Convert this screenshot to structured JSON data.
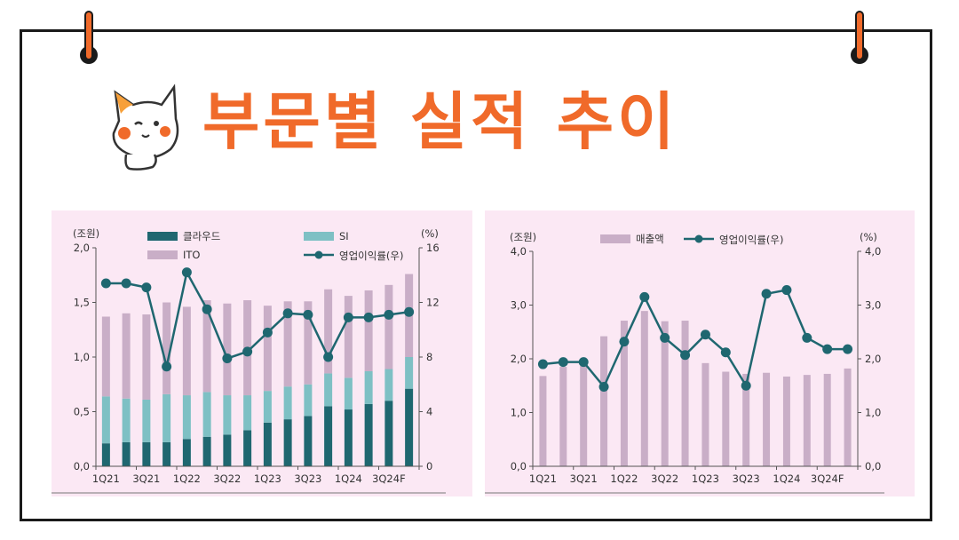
{
  "page": {
    "title": "부문별 실적 추이"
  },
  "colors": {
    "title": "#f06a2a",
    "cloud": "#1f6770",
    "si": "#7ec0c4",
    "ito": "#c9aec7",
    "sales": "#c9aec7",
    "line": "#1f6770",
    "panel_bg": "#fbe8f4"
  },
  "chart_data": [
    {
      "type": "bar",
      "stacked": true,
      "left_unit": "(조원)",
      "right_unit": "(%)",
      "ylim": [
        0,
        2.0
      ],
      "y2lim": [
        0,
        16
      ],
      "yticks": [
        "0,0",
        "0,5",
        "1,0",
        "1,5",
        "2,0"
      ],
      "y2ticks": [
        "0",
        "4",
        "8",
        "12",
        "16"
      ],
      "x_tick_labels": [
        "1Q21",
        "3Q21",
        "1Q22",
        "3Q22",
        "1Q23",
        "3Q23",
        "1Q24",
        "3Q24F"
      ],
      "categories": [
        "1Q21",
        "2Q21",
        "3Q21",
        "4Q21",
        "1Q22",
        "2Q22",
        "3Q22",
        "4Q22",
        "1Q23",
        "2Q23",
        "3Q23",
        "4Q23",
        "1Q24",
        "2Q24",
        "3Q24F",
        "4Q24F"
      ],
      "legend": [
        "클라우드",
        "SI",
        "ITO",
        "영업이익률(우)"
      ],
      "series": [
        {
          "name": "클라우드",
          "values": [
            0.21,
            0.22,
            0.22,
            0.22,
            0.25,
            0.27,
            0.29,
            0.33,
            0.4,
            0.43,
            0.46,
            0.55,
            0.52,
            0.57,
            0.6,
            0.71
          ]
        },
        {
          "name": "SI",
          "values": [
            0.43,
            0.4,
            0.39,
            0.44,
            0.4,
            0.41,
            0.36,
            0.32,
            0.29,
            0.3,
            0.29,
            0.3,
            0.29,
            0.3,
            0.29,
            0.29
          ]
        },
        {
          "name": "ITO",
          "values": [
            0.73,
            0.78,
            0.78,
            0.84,
            0.81,
            0.84,
            0.84,
            0.87,
            0.78,
            0.78,
            0.76,
            0.77,
            0.75,
            0.74,
            0.77,
            0.76
          ]
        },
        {
          "name": "영업이익률(우)",
          "axis": "right",
          "values": [
            13.4,
            13.4,
            13.1,
            7.3,
            14.2,
            11.5,
            7.9,
            8.4,
            9.8,
            11.2,
            11.1,
            8.0,
            10.9,
            10.9,
            11.1,
            11.3
          ]
        }
      ]
    },
    {
      "type": "bar",
      "left_unit": "(조원)",
      "right_unit": "(%)",
      "ylim": [
        0,
        4.0
      ],
      "y2lim": [
        0,
        4.0
      ],
      "yticks": [
        "0,0",
        "1,0",
        "2,0",
        "3,0",
        "4,0"
      ],
      "y2ticks": [
        "0,0",
        "1,0",
        "2,0",
        "3,0",
        "4,0"
      ],
      "x_tick_labels": [
        "1Q21",
        "3Q21",
        "1Q22",
        "3Q22",
        "1Q23",
        "3Q23",
        "1Q24",
        "3Q24F"
      ],
      "categories": [
        "1Q21",
        "2Q21",
        "3Q21",
        "4Q21",
        "1Q22",
        "2Q22",
        "3Q22",
        "4Q22",
        "1Q23",
        "2Q23",
        "3Q23",
        "4Q23",
        "1Q24",
        "2Q24",
        "3Q24F",
        "4Q24F"
      ],
      "legend": [
        "매출액",
        "영업이익률(우)"
      ],
      "series": [
        {
          "name": "매출액",
          "values": [
            1.68,
            1.85,
            1.87,
            2.42,
            2.71,
            2.89,
            2.7,
            2.71,
            1.92,
            1.76,
            1.72,
            1.74,
            1.67,
            1.7,
            1.72,
            1.82
          ]
        },
        {
          "name": "영업이익률(우)",
          "axis": "right",
          "values": [
            1.9,
            1.94,
            1.94,
            1.48,
            2.32,
            3.15,
            2.39,
            2.07,
            2.45,
            2.12,
            1.5,
            3.21,
            3.28,
            2.39,
            2.18,
            2.18
          ]
        }
      ]
    }
  ]
}
